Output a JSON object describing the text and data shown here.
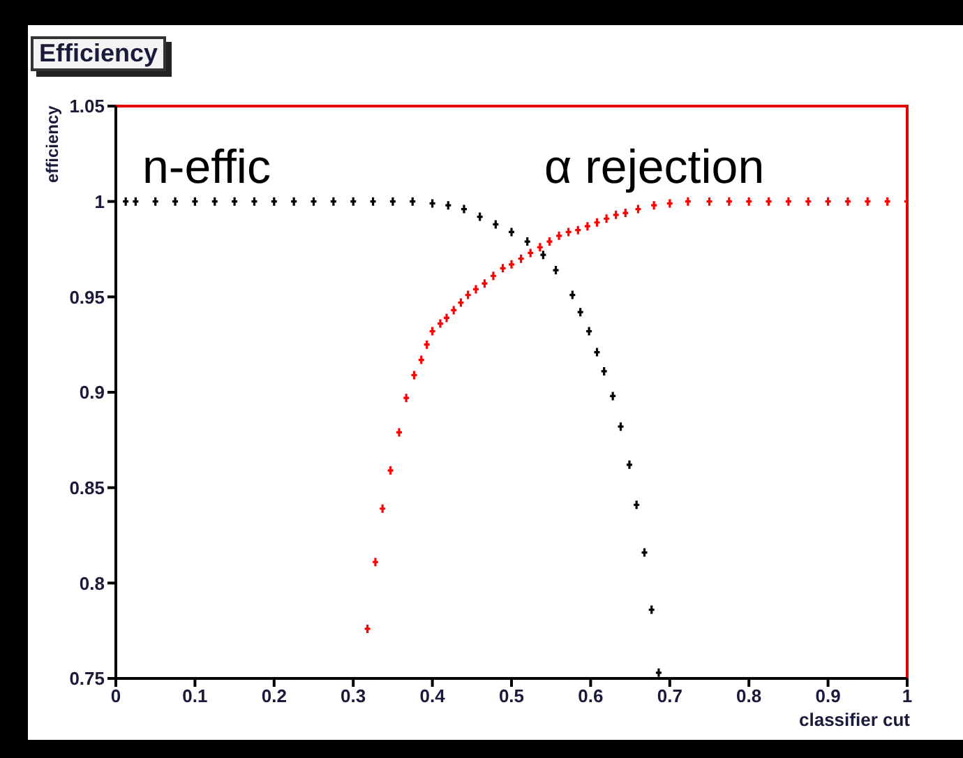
{
  "chart_data": {
    "type": "scatter",
    "title": "Efficiency",
    "xlabel": "classifier cut",
    "ylabel": "efficiency",
    "xlim": [
      0,
      1
    ],
    "ylim": [
      0.75,
      1.05
    ],
    "xticks": [
      0,
      0.1,
      0.2,
      0.3,
      0.4,
      0.5,
      0.6,
      0.7,
      0.8,
      0.9,
      1
    ],
    "yticks": [
      0.75,
      0.8,
      0.85,
      0.9,
      0.95,
      1,
      1.05
    ],
    "marker": "cross",
    "series": [
      {
        "name": "n-effic",
        "color": "#000000",
        "x": [
          0.0125,
          0.025,
          0.05,
          0.075,
          0.1,
          0.125,
          0.15,
          0.175,
          0.2,
          0.225,
          0.25,
          0.275,
          0.3,
          0.325,
          0.35,
          0.375,
          0.4,
          0.42,
          0.44,
          0.46,
          0.48,
          0.5,
          0.52,
          0.54,
          0.556,
          0.577,
          0.587,
          0.598,
          0.608,
          0.617,
          0.628,
          0.638,
          0.649,
          0.658,
          0.668,
          0.677,
          0.686
        ],
        "values": [
          1,
          1,
          1,
          1,
          1,
          1,
          1,
          1,
          1,
          1,
          1,
          1,
          1,
          1,
          1,
          1,
          0.999,
          0.998,
          0.996,
          0.992,
          0.988,
          0.984,
          0.979,
          0.972,
          0.964,
          0.951,
          0.942,
          0.932,
          0.921,
          0.911,
          0.898,
          0.882,
          0.862,
          0.841,
          0.816,
          0.786,
          0.753
        ]
      },
      {
        "name": "α rejection",
        "color": "#ff0000",
        "x": [
          0.318,
          0.328,
          0.337,
          0.347,
          0.358,
          0.367,
          0.377,
          0.386,
          0.393,
          0.4,
          0.41,
          0.418,
          0.427,
          0.436,
          0.445,
          0.455,
          0.466,
          0.477,
          0.489,
          0.5,
          0.512,
          0.524,
          0.536,
          0.548,
          0.56,
          0.572,
          0.584,
          0.596,
          0.608,
          0.62,
          0.632,
          0.644,
          0.66,
          0.68,
          0.7,
          0.723,
          0.75,
          0.775,
          0.8,
          0.825,
          0.85,
          0.875,
          0.9,
          0.925,
          0.95,
          0.975,
          1
        ],
        "values": [
          0.776,
          0.811,
          0.839,
          0.859,
          0.879,
          0.897,
          0.909,
          0.917,
          0.925,
          0.932,
          0.936,
          0.939,
          0.943,
          0.947,
          0.951,
          0.954,
          0.957,
          0.961,
          0.965,
          0.967,
          0.97,
          0.973,
          0.976,
          0.979,
          0.982,
          0.984,
          0.985,
          0.987,
          0.989,
          0.991,
          0.993,
          0.994,
          0.996,
          0.998,
          0.999,
          1,
          1,
          1,
          1,
          1,
          1,
          1,
          1,
          1,
          1,
          1,
          1
        ]
      }
    ]
  }
}
